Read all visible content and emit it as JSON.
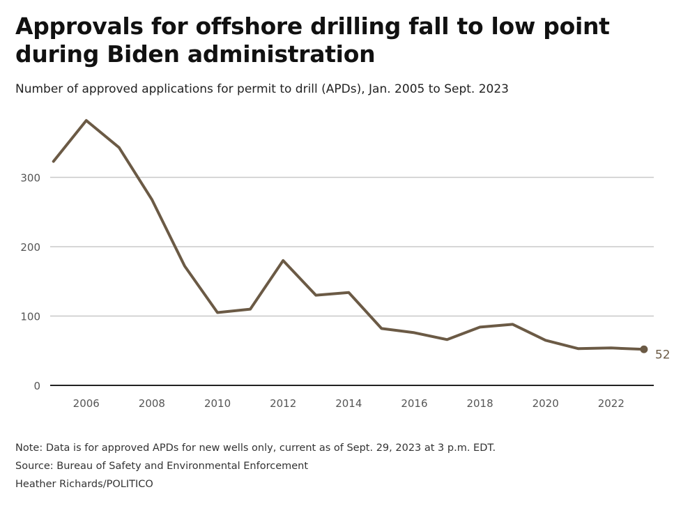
{
  "header": {
    "title": "Approvals for offshore drilling fall to low point during Biden administration",
    "subtitle": "Number of approved applications for permit to drill (APDs), Jan. 2005 to Sept. 2023"
  },
  "footer": {
    "note": "Note: Data is for approved APDs for new wells only, current as of Sept. 29, 2023 at 3 p.m. EDT.",
    "source": "Source: Bureau of Safety and Environmental Enforcement",
    "credit": "Heather Richards/POLITICO"
  },
  "colors": {
    "line": "#6b5a45",
    "grid": "#c8c8c8",
    "axis": "#222222"
  },
  "chart_data": {
    "type": "line",
    "title": "Approvals for offshore drilling fall to low point during Biden administration",
    "subtitle": "Number of approved applications for permit to drill (APDs), Jan. 2005 to Sept. 2023",
    "xlabel": "",
    "ylabel": "",
    "x": [
      2005,
      2006,
      2007,
      2008,
      2009,
      2010,
      2011,
      2012,
      2013,
      2014,
      2015,
      2016,
      2017,
      2018,
      2019,
      2020,
      2021,
      2022,
      2023
    ],
    "series": [
      {
        "values": [
          323,
          382,
          343,
          268,
          172,
          105,
          110,
          180,
          130,
          134,
          82,
          76,
          66,
          84,
          88,
          65,
          53,
          54,
          52
        ]
      }
    ],
    "xlim": [
      2004.9,
      2023.3
    ],
    "ylim": [
      0,
      400
    ],
    "x_ticks": [
      2006,
      2008,
      2010,
      2012,
      2014,
      2016,
      2018,
      2020,
      2022
    ],
    "y_ticks": [
      0,
      100,
      200,
      300
    ],
    "end_label": "52",
    "grid": true
  }
}
